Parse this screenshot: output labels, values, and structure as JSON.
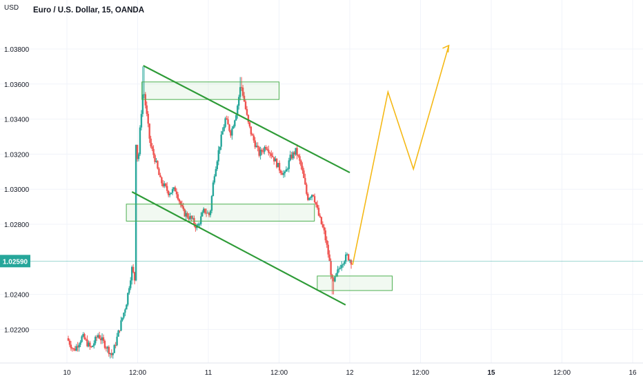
{
  "header": {
    "currency_label": "USD",
    "title": "Euro / U.S. Dollar, 15, OANDA"
  },
  "colors": {
    "up": "#26a69a",
    "down": "#ef5350",
    "trendline": "#2e9b37",
    "zone_stroke": "#4caf50",
    "zone_fill": "rgba(76,175,80,0.08)",
    "projection": "#f5b916",
    "price_badge": "#26a69a",
    "axis_text": "#131722"
  },
  "chart_data": {
    "type": "candlestick",
    "title": "Euro / U.S. Dollar, 15, OANDA",
    "ylabel": "USD",
    "ylim": [
      1.0203,
      1.0402
    ],
    "y_ticks": [
      "1.02200",
      "1.02400",
      "1.02800",
      "1.03000",
      "1.03200",
      "1.03400",
      "1.03600",
      "1.03800"
    ],
    "x_ticks": [
      "10",
      "12:00",
      "11",
      "12:00",
      "12",
      "12:00",
      "15",
      "12:00",
      "16"
    ],
    "current_price": "1.02590",
    "price_path": [
      [
        0.0,
        1.0215
      ],
      [
        0.05,
        1.0208
      ],
      [
        0.11,
        1.0216
      ],
      [
        0.17,
        1.0209
      ],
      [
        0.22,
        1.0217
      ],
      [
        0.28,
        1.021
      ],
      [
        0.32,
        1.0205
      ],
      [
        0.37,
        1.022
      ],
      [
        0.42,
        1.0235
      ],
      [
        0.46,
        1.0255
      ],
      [
        0.48,
        1.0248
      ],
      [
        0.49,
        1.0345
      ],
      [
        0.5,
        1.031
      ],
      [
        0.52,
        1.0338
      ],
      [
        0.54,
        1.0358
      ],
      [
        0.56,
        1.0345
      ],
      [
        0.59,
        1.0325
      ],
      [
        0.62,
        1.0318
      ],
      [
        0.66,
        1.0305
      ],
      [
        0.72,
        1.0298
      ],
      [
        0.77,
        1.03
      ],
      [
        0.82,
        1.0287
      ],
      [
        0.88,
        1.0283
      ],
      [
        0.92,
        1.0278
      ],
      [
        0.97,
        1.0288
      ],
      [
        1.01,
        1.0285
      ],
      [
        1.04,
        1.0308
      ],
      [
        1.08,
        1.0325
      ],
      [
        1.12,
        1.034
      ],
      [
        1.16,
        1.0332
      ],
      [
        1.2,
        1.0345
      ],
      [
        1.23,
        1.036
      ],
      [
        1.25,
        1.0352
      ],
      [
        1.28,
        1.0338
      ],
      [
        1.31,
        1.033
      ],
      [
        1.36,
        1.032
      ],
      [
        1.41,
        1.0325
      ],
      [
        1.46,
        1.0318
      ],
      [
        1.5,
        1.0312
      ],
      [
        1.54,
        1.0308
      ],
      [
        1.58,
        1.0318
      ],
      [
        1.62,
        1.0322
      ],
      [
        1.66,
        1.0312
      ],
      [
        1.7,
        1.0295
      ],
      [
        1.74,
        1.0298
      ],
      [
        1.78,
        1.0285
      ],
      [
        1.82,
        1.0275
      ],
      [
        1.85,
        1.0262
      ],
      [
        1.88,
        1.0245
      ],
      [
        1.91,
        1.0252
      ],
      [
        1.94,
        1.0258
      ],
      [
        1.98,
        1.0262
      ],
      [
        2.01,
        1.0259
      ]
    ],
    "zones": [
      {
        "x1": 0.53,
        "x2": 1.5,
        "y1": 1.03612,
        "y2": 1.03512
      },
      {
        "x1": 0.42,
        "x2": 1.75,
        "y1": 1.02915,
        "y2": 1.02818
      },
      {
        "x1": 1.77,
        "x2": 2.3,
        "y1": 1.02505,
        "y2": 1.02422
      }
    ],
    "trendlines": [
      {
        "points": [
          [
            0.54,
            1.03705
          ],
          [
            2.0,
            1.03095
          ]
        ]
      },
      {
        "points": [
          [
            0.46,
            1.02985
          ],
          [
            1.97,
            1.0234
          ]
        ]
      }
    ],
    "projection": {
      "points": [
        [
          2.02,
          1.02568
        ],
        [
          2.27,
          1.03555
        ],
        [
          2.45,
          1.03115
        ],
        [
          2.7,
          1.0382
        ]
      ]
    }
  }
}
